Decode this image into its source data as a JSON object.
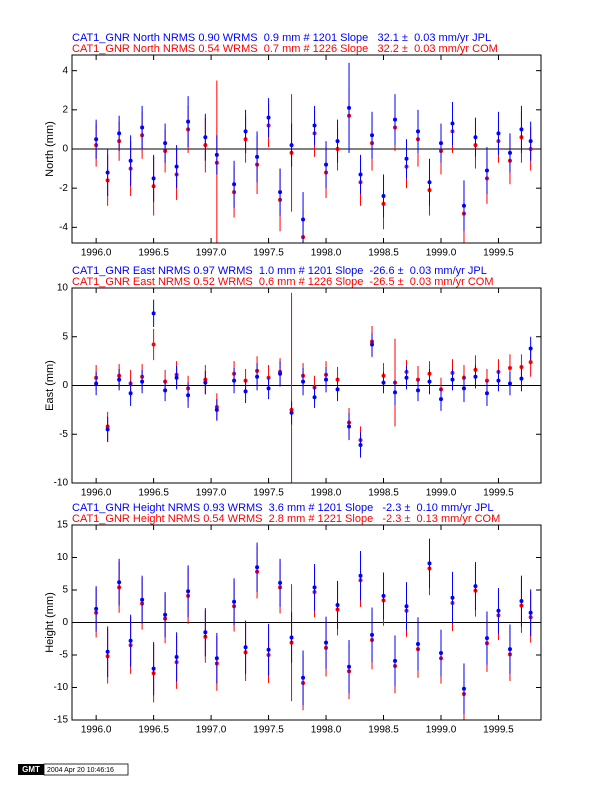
{
  "chart_data": [
    {
      "type": "errorbar",
      "ylabel": "North (mm)",
      "x": [
        1996.0,
        1996.1,
        1996.2,
        1996.3,
        1996.4,
        1996.5,
        1996.6,
        1996.7,
        1996.8,
        1996.95,
        1997.05,
        1997.2,
        1997.3,
        1997.4,
        1997.5,
        1997.6,
        1997.7,
        1997.8,
        1997.9,
        1998.0,
        1998.1,
        1998.2,
        1998.3,
        1998.4,
        1998.5,
        1998.6,
        1998.7,
        1998.8,
        1998.9,
        1999.0,
        1999.1,
        1999.2,
        1999.3,
        1999.4,
        1999.5,
        1999.6,
        1999.7,
        1999.78
      ],
      "xlim": [
        1995.79,
        1999.87
      ],
      "xticks": [
        {
          "value": 1996,
          "label": "1996.0"
        },
        {
          "value": 1996.5,
          "label": "1996.5"
        },
        {
          "value": 1997,
          "label": "1997.0"
        },
        {
          "value": 1997.5,
          "label": "1997.5"
        },
        {
          "value": 1998,
          "label": "1998.0"
        },
        {
          "value": 1998.5,
          "label": "1998.5"
        },
        {
          "value": 1999,
          "label": "1999.0"
        },
        {
          "value": 1999.5,
          "label": "1999.5"
        }
      ],
      "ylim": [
        -4.8,
        4.8
      ],
      "yticks": [
        -4,
        -2,
        0,
        2,
        4
      ],
      "series": [
        {
          "name": "CAT1_GNR North NRMS 0.54 WRMS  0.7 mm # 1226 Slope   32.2 ±  0.03 mm/yr COM",
          "color": "#ff0000",
          "values": [
            0.2,
            -1.6,
            0.4,
            -1.0,
            0.7,
            -1.9,
            -0.1,
            -1.3,
            1.0,
            0.2,
            -0.7,
            -2.2,
            0.5,
            -0.8,
            1.2,
            -2.6,
            -0.2,
            -4.5,
            0.8,
            -1.2,
            0.0,
            1.7,
            -1.7,
            0.3,
            -2.8,
            1.1,
            -0.9,
            0.5,
            -2.1,
            -0.1,
            0.9,
            -3.3,
            0.2,
            -1.5,
            0.4,
            -0.6,
            0.6,
            0.0
          ],
          "errors": [
            1.1,
            1.3,
            1.0,
            1.4,
            1.2,
            1.5,
            1.1,
            1.3,
            1.2,
            1.4,
            4.2,
            1.3,
            1.2,
            1.5,
            1.1,
            1.6,
            3.0,
            1.4,
            1.2,
            1.3,
            1.1,
            1.5,
            1.2,
            1.4,
            1.3,
            1.2,
            1.1,
            1.4,
            1.3,
            1.2,
            1.1,
            1.5,
            1.2,
            1.3,
            1.1,
            1.2,
            1.3,
            1.1
          ]
        },
        {
          "name": "CAT1_GNR North NRMS 0.90 WRMS  0.9 mm # 1201 Slope   32.1 ±  0.03 mm/yr JPL",
          "color": "#0000ff",
          "values": [
            0.5,
            -1.2,
            0.8,
            -0.6,
            1.1,
            -1.5,
            0.3,
            -0.9,
            1.4,
            0.6,
            -0.3,
            -1.8,
            0.9,
            -0.4,
            1.6,
            -2.2,
            0.2,
            -3.6,
            1.2,
            -0.8,
            0.4,
            2.1,
            -1.3,
            0.7,
            -2.4,
            1.5,
            -0.5,
            0.9,
            -1.7,
            0.3,
            1.3,
            -2.9,
            0.6,
            -1.1,
            0.8,
            -0.2,
            1.0,
            0.4
          ],
          "errors": [
            1.0,
            1.2,
            0.9,
            1.3,
            1.1,
            1.2,
            1.0,
            1.1,
            1.3,
            1.2,
            1.0,
            1.2,
            1.1,
            1.3,
            1.0,
            1.2,
            1.1,
            1.4,
            1.0,
            1.2,
            1.1,
            2.3,
            1.0,
            1.2,
            1.1,
            1.3,
            1.0,
            1.1,
            1.2,
            1.0,
            1.1,
            1.3,
            1.0,
            1.2,
            1.1,
            1.0,
            1.2,
            1.0
          ]
        }
      ]
    },
    {
      "type": "errorbar",
      "ylabel": "East (mm)",
      "x": [
        1996.0,
        1996.1,
        1996.2,
        1996.3,
        1996.4,
        1996.5,
        1996.6,
        1996.7,
        1996.8,
        1996.95,
        1997.05,
        1997.2,
        1997.3,
        1997.4,
        1997.5,
        1997.6,
        1997.7,
        1997.8,
        1997.9,
        1998.0,
        1998.1,
        1998.2,
        1998.3,
        1998.4,
        1998.5,
        1998.6,
        1998.7,
        1998.8,
        1998.9,
        1999.0,
        1999.1,
        1999.2,
        1999.3,
        1999.4,
        1999.5,
        1999.6,
        1999.7,
        1999.78
      ],
      "xlim": [
        1995.79,
        1999.87
      ],
      "xticks": [
        {
          "value": 1996,
          "label": "1996.0"
        },
        {
          "value": 1996.5,
          "label": "1996.5"
        },
        {
          "value": 1997,
          "label": "1997.0"
        },
        {
          "value": 1997.5,
          "label": "1997.5"
        },
        {
          "value": 1998,
          "label": "1998.0"
        },
        {
          "value": 1998.5,
          "label": "1998.5"
        },
        {
          "value": 1999,
          "label": "1999.0"
        },
        {
          "value": 1999.5,
          "label": "1999.5"
        }
      ],
      "ylim": [
        -10,
        10
      ],
      "yticks": [
        -10,
        -5,
        0,
        5,
        10
      ],
      "series": [
        {
          "name": "CAT1_GNR East NRMS 0.52 WRMS  0.6 mm # 1226 Slope  -26.5 ±  0.03 mm/yr COM",
          "color": "#ff0000",
          "values": [
            0.8,
            -4.2,
            1.0,
            0.2,
            0.9,
            4.2,
            0.4,
            1.1,
            -0.3,
            0.6,
            -2.2,
            1.2,
            0.5,
            1.5,
            0.8,
            1.4,
            -2.5,
            1.0,
            -0.2,
            1.1,
            0.6,
            -3.8,
            -5.6,
            4.5,
            1.0,
            0.3,
            1.4,
            0.6,
            1.2,
            -0.4,
            1.3,
            0.8,
            1.6,
            0.5,
            1.4,
            1.8,
            1.9,
            2.4
          ],
          "errors": [
            1.3,
            1.5,
            1.2,
            1.4,
            1.3,
            1.6,
            1.2,
            1.4,
            1.3,
            1.5,
            1.4,
            1.3,
            1.2,
            1.5,
            1.3,
            1.4,
            12.0,
            1.3,
            1.2,
            1.4,
            1.3,
            1.5,
            1.4,
            1.6,
            1.3,
            4.5,
            1.2,
            1.4,
            1.3,
            1.2,
            1.4,
            1.3,
            1.5,
            1.2,
            1.3,
            1.4,
            1.3,
            1.5
          ]
        },
        {
          "name": "CAT1_GNR East NRMS 0.97 WRMS  1.0 mm # 1201 Slope  -26.6 ±  0.03 mm/yr JPL",
          "color": "#0000ff",
          "values": [
            0.2,
            -4.5,
            0.6,
            -0.8,
            0.4,
            7.4,
            -0.5,
            0.8,
            -1.0,
            0.3,
            -2.5,
            0.5,
            -0.6,
            0.9,
            -0.3,
            1.2,
            -2.8,
            0.4,
            -1.2,
            0.6,
            -0.4,
            -4.2,
            -6.1,
            4.2,
            0.3,
            -0.7,
            0.8,
            -0.5,
            0.4,
            -1.4,
            0.6,
            -0.3,
            0.9,
            -0.8,
            0.5,
            0.2,
            0.7,
            3.8
          ],
          "errors": [
            1.2,
            1.3,
            1.1,
            1.3,
            1.2,
            1.4,
            1.1,
            1.2,
            1.3,
            1.2,
            1.1,
            1.3,
            1.2,
            1.4,
            1.1,
            1.3,
            1.2,
            1.4,
            1.1,
            1.3,
            1.2,
            1.4,
            1.3,
            1.2,
            1.1,
            1.3,
            1.2,
            1.1,
            1.3,
            1.2,
            1.1,
            1.4,
            1.2,
            1.3,
            1.1,
            1.2,
            1.3,
            1.2
          ]
        }
      ]
    },
    {
      "type": "errorbar",
      "ylabel": "Height (mm)",
      "x": [
        1996.0,
        1996.1,
        1996.2,
        1996.3,
        1996.4,
        1996.5,
        1996.6,
        1996.7,
        1996.8,
        1996.95,
        1997.05,
        1997.2,
        1997.3,
        1997.4,
        1997.5,
        1997.6,
        1997.7,
        1997.8,
        1997.9,
        1998.0,
        1998.1,
        1998.2,
        1998.3,
        1998.4,
        1998.5,
        1998.6,
        1998.7,
        1998.8,
        1998.9,
        1999.0,
        1999.1,
        1999.2,
        1999.3,
        1999.4,
        1999.5,
        1999.6,
        1999.7,
        1999.78
      ],
      "xlim": [
        1995.79,
        1999.87
      ],
      "xticks": [
        {
          "value": 1996,
          "label": "1996.0"
        },
        {
          "value": 1996.5,
          "label": "1996.5"
        },
        {
          "value": 1997,
          "label": "1997.0"
        },
        {
          "value": 1997.5,
          "label": "1997.5"
        },
        {
          "value": 1998,
          "label": "1998.0"
        },
        {
          "value": 1998.5,
          "label": "1998.5"
        },
        {
          "value": 1999,
          "label": "1999.0"
        },
        {
          "value": 1999.5,
          "label": "1999.5"
        }
      ],
      "ylim": [
        -15,
        15
      ],
      "yticks": [
        -15,
        -10,
        -5,
        0,
        5,
        10,
        15
      ],
      "series": [
        {
          "name": "CAT1_GNR Height NRMS 0.54 WRMS  2.8 mm # 1221 Slope   -2.3 ±  0.13 mm/yr COM",
          "color": "#ff0000",
          "values": [
            1.5,
            -5.2,
            5.4,
            -3.5,
            2.9,
            -7.8,
            0.6,
            -6.1,
            4.1,
            -2.2,
            -6.3,
            2.5,
            -4.6,
            7.8,
            -5.0,
            5.4,
            -3.1,
            -9.3,
            4.7,
            -3.9,
            2.0,
            -7.5,
            6.5,
            -2.7,
            3.4,
            -6.7,
            1.8,
            -4.1,
            8.3,
            -5.5,
            3.0,
            -11.0,
            4.9,
            -3.2,
            1.1,
            -4.9,
            2.6,
            0.8
          ],
          "errors": [
            3.8,
            4.2,
            3.9,
            4.4,
            4.0,
            4.5,
            3.8,
            4.1,
            4.3,
            4.0,
            4.2,
            3.9,
            4.4,
            4.1,
            4.3,
            4.0,
            9.0,
            4.2,
            3.9,
            4.4,
            4.0,
            4.3,
            4.1,
            4.5,
            3.9,
            4.2,
            4.0,
            4.4,
            4.1,
            3.9,
            4.3,
            4.2,
            4.0,
            4.4,
            3.8,
            4.1,
            4.2,
            3.9
          ]
        },
        {
          "name": "CAT1_GNR Height NRMS 0.93 WRMS  3.6 mm # 1201 Slope   -2.3 ±  0.10 mm/yr JPL",
          "color": "#0000ff",
          "values": [
            2.1,
            -4.5,
            6.2,
            -2.8,
            3.5,
            -7.1,
            1.2,
            -5.3,
            4.8,
            -1.5,
            -5.5,
            3.2,
            -3.8,
            8.5,
            -4.2,
            6.1,
            -2.3,
            -8.5,
            5.4,
            -3.1,
            2.7,
            -6.8,
            7.2,
            -1.9,
            4.1,
            -5.9,
            2.5,
            -3.3,
            9.1,
            -4.7,
            3.8,
            -10.2,
            5.6,
            -2.4,
            1.8,
            -4.1,
            3.3,
            1.5
          ],
          "errors": [
            3.5,
            3.9,
            3.6,
            4.0,
            3.7,
            4.1,
            3.5,
            3.8,
            4.0,
            3.7,
            3.9,
            3.6,
            4.1,
            3.8,
            4.0,
            3.7,
            3.9,
            4.2,
            3.6,
            4.0,
            3.7,
            4.1,
            3.8,
            4.2,
            3.6,
            3.9,
            3.7,
            4.1,
            3.8,
            3.6,
            4.0,
            3.9,
            3.7,
            4.1,
            3.5,
            3.8,
            3.9,
            3.6
          ]
        }
      ]
    }
  ],
  "footer": {
    "logo": "GMT",
    "timestamp": "2004 Apr 20 10:46:16"
  }
}
